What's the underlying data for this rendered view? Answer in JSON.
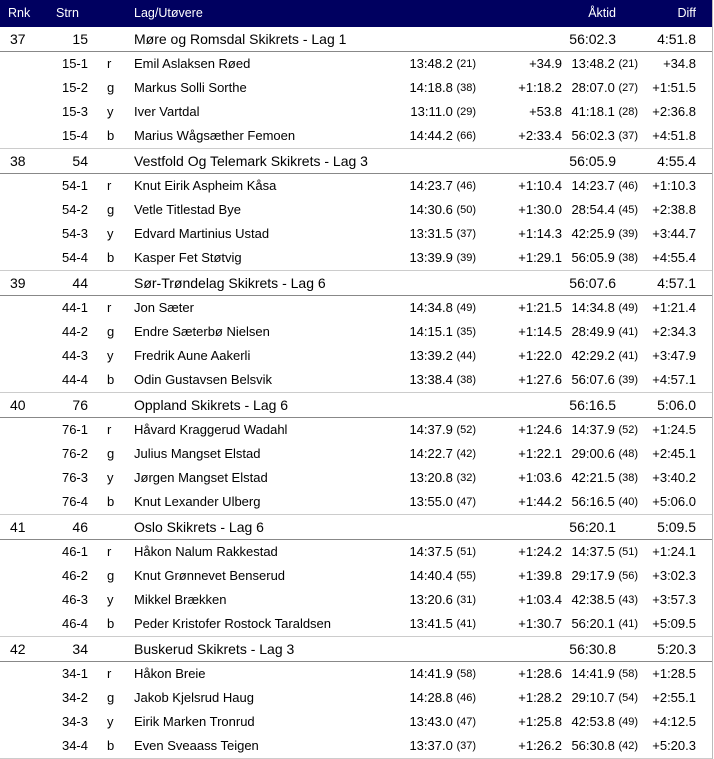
{
  "header": {
    "rank": "Rnk",
    "start": "Strn",
    "team": "Lag/Utøvere",
    "total": "Åktid",
    "diff": "Diff"
  },
  "teams": [
    {
      "rank": "37",
      "bib": "15",
      "name": "Møre og Romsdal Skikrets - Lag 1",
      "time": "56:02.3",
      "diff": "4:51.8",
      "runners": [
        {
          "bib": "15-1",
          "color": "r",
          "name": "Emil Aslaksen Røed",
          "leg": "13:48.2",
          "leg_rank": "(21)",
          "leg_diff": "+34.9",
          "cum": "13:48.2",
          "cum_rank": "(21)",
          "cum_diff": "+34.8"
        },
        {
          "bib": "15-2",
          "color": "g",
          "name": "Markus Solli Sorthe",
          "leg": "14:18.8",
          "leg_rank": "(38)",
          "leg_diff": "+1:18.2",
          "cum": "28:07.0",
          "cum_rank": "(27)",
          "cum_diff": "+1:51.5"
        },
        {
          "bib": "15-3",
          "color": "y",
          "name": "Iver Vartdal",
          "leg": "13:11.0",
          "leg_rank": "(29)",
          "leg_diff": "+53.8",
          "cum": "41:18.1",
          "cum_rank": "(28)",
          "cum_diff": "+2:36.8"
        },
        {
          "bib": "15-4",
          "color": "b",
          "name": "Marius Wågsæther Femoen",
          "leg": "14:44.2",
          "leg_rank": "(66)",
          "leg_diff": "+2:33.4",
          "cum": "56:02.3",
          "cum_rank": "(37)",
          "cum_diff": "+4:51.8"
        }
      ]
    },
    {
      "rank": "38",
      "bib": "54",
      "name": "Vestfold Og Telemark Skikrets - Lag 3",
      "time": "56:05.9",
      "diff": "4:55.4",
      "runners": [
        {
          "bib": "54-1",
          "color": "r",
          "name": "Knut Eirik Aspheim Kåsa",
          "leg": "14:23.7",
          "leg_rank": "(46)",
          "leg_diff": "+1:10.4",
          "cum": "14:23.7",
          "cum_rank": "(46)",
          "cum_diff": "+1:10.3"
        },
        {
          "bib": "54-2",
          "color": "g",
          "name": "Vetle Titlestad Bye",
          "leg": "14:30.6",
          "leg_rank": "(50)",
          "leg_diff": "+1:30.0",
          "cum": "28:54.4",
          "cum_rank": "(45)",
          "cum_diff": "+2:38.8"
        },
        {
          "bib": "54-3",
          "color": "y",
          "name": "Edvard Martinius Ustad",
          "leg": "13:31.5",
          "leg_rank": "(37)",
          "leg_diff": "+1:14.3",
          "cum": "42:25.9",
          "cum_rank": "(39)",
          "cum_diff": "+3:44.7"
        },
        {
          "bib": "54-4",
          "color": "b",
          "name": "Kasper Fet Støtvig",
          "leg": "13:39.9",
          "leg_rank": "(39)",
          "leg_diff": "+1:29.1",
          "cum": "56:05.9",
          "cum_rank": "(38)",
          "cum_diff": "+4:55.4"
        }
      ]
    },
    {
      "rank": "39",
      "bib": "44",
      "name": "Sør-Trøndelag Skikrets - Lag 6",
      "time": "56:07.6",
      "diff": "4:57.1",
      "runners": [
        {
          "bib": "44-1",
          "color": "r",
          "name": "Jon Sæter",
          "leg": "14:34.8",
          "leg_rank": "(49)",
          "leg_diff": "+1:21.5",
          "cum": "14:34.8",
          "cum_rank": "(49)",
          "cum_diff": "+1:21.4"
        },
        {
          "bib": "44-2",
          "color": "g",
          "name": "Endre Sæterbø Nielsen",
          "leg": "14:15.1",
          "leg_rank": "(35)",
          "leg_diff": "+1:14.5",
          "cum": "28:49.9",
          "cum_rank": "(41)",
          "cum_diff": "+2:34.3"
        },
        {
          "bib": "44-3",
          "color": "y",
          "name": "Fredrik Aune Aakerli",
          "leg": "13:39.2",
          "leg_rank": "(44)",
          "leg_diff": "+1:22.0",
          "cum": "42:29.2",
          "cum_rank": "(41)",
          "cum_diff": "+3:47.9"
        },
        {
          "bib": "44-4",
          "color": "b",
          "name": "Odin Gustavsen Belsvik",
          "leg": "13:38.4",
          "leg_rank": "(38)",
          "leg_diff": "+1:27.6",
          "cum": "56:07.6",
          "cum_rank": "(39)",
          "cum_diff": "+4:57.1"
        }
      ]
    },
    {
      "rank": "40",
      "bib": "76",
      "name": "Oppland Skikrets - Lag 6",
      "time": "56:16.5",
      "diff": "5:06.0",
      "runners": [
        {
          "bib": "76-1",
          "color": "r",
          "name": "Håvard Kraggerud Wadahl",
          "leg": "14:37.9",
          "leg_rank": "(52)",
          "leg_diff": "+1:24.6",
          "cum": "14:37.9",
          "cum_rank": "(52)",
          "cum_diff": "+1:24.5"
        },
        {
          "bib": "76-2",
          "color": "g",
          "name": "Julius Mangset Elstad",
          "leg": "14:22.7",
          "leg_rank": "(42)",
          "leg_diff": "+1:22.1",
          "cum": "29:00.6",
          "cum_rank": "(48)",
          "cum_diff": "+2:45.1"
        },
        {
          "bib": "76-3",
          "color": "y",
          "name": "Jørgen Mangset Elstad",
          "leg": "13:20.8",
          "leg_rank": "(32)",
          "leg_diff": "+1:03.6",
          "cum": "42:21.5",
          "cum_rank": "(38)",
          "cum_diff": "+3:40.2"
        },
        {
          "bib": "76-4",
          "color": "b",
          "name": "Knut Lexander Ulberg",
          "leg": "13:55.0",
          "leg_rank": "(47)",
          "leg_diff": "+1:44.2",
          "cum": "56:16.5",
          "cum_rank": "(40)",
          "cum_diff": "+5:06.0"
        }
      ]
    },
    {
      "rank": "41",
      "bib": "46",
      "name": "Oslo Skikrets - Lag 6",
      "time": "56:20.1",
      "diff": "5:09.5",
      "runners": [
        {
          "bib": "46-1",
          "color": "r",
          "name": "Håkon Nalum Rakkestad",
          "leg": "14:37.5",
          "leg_rank": "(51)",
          "leg_diff": "+1:24.2",
          "cum": "14:37.5",
          "cum_rank": "(51)",
          "cum_diff": "+1:24.1"
        },
        {
          "bib": "46-2",
          "color": "g",
          "name": "Knut Grønnevet Benserud",
          "leg": "14:40.4",
          "leg_rank": "(55)",
          "leg_diff": "+1:39.8",
          "cum": "29:17.9",
          "cum_rank": "(56)",
          "cum_diff": "+3:02.3"
        },
        {
          "bib": "46-3",
          "color": "y",
          "name": "Mikkel Brækken",
          "leg": "13:20.6",
          "leg_rank": "(31)",
          "leg_diff": "+1:03.4",
          "cum": "42:38.5",
          "cum_rank": "(43)",
          "cum_diff": "+3:57.3"
        },
        {
          "bib": "46-4",
          "color": "b",
          "name": "Peder Kristofer Rostock Taraldsen",
          "leg": "13:41.5",
          "leg_rank": "(41)",
          "leg_diff": "+1:30.7",
          "cum": "56:20.1",
          "cum_rank": "(41)",
          "cum_diff": "+5:09.5"
        }
      ]
    },
    {
      "rank": "42",
      "bib": "34",
      "name": "Buskerud Skikrets - Lag 3",
      "time": "56:30.8",
      "diff": "5:20.3",
      "runners": [
        {
          "bib": "34-1",
          "color": "r",
          "name": "Håkon Breie",
          "leg": "14:41.9",
          "leg_rank": "(58)",
          "leg_diff": "+1:28.6",
          "cum": "14:41.9",
          "cum_rank": "(58)",
          "cum_diff": "+1:28.5"
        },
        {
          "bib": "34-2",
          "color": "g",
          "name": "Jakob Kjelsrud Haug",
          "leg": "14:28.8",
          "leg_rank": "(46)",
          "leg_diff": "+1:28.2",
          "cum": "29:10.7",
          "cum_rank": "(54)",
          "cum_diff": "+2:55.1"
        },
        {
          "bib": "34-3",
          "color": "y",
          "name": "Eirik Marken Tronrud",
          "leg": "13:43.0",
          "leg_rank": "(47)",
          "leg_diff": "+1:25.8",
          "cum": "42:53.8",
          "cum_rank": "(49)",
          "cum_diff": "+4:12.5"
        },
        {
          "bib": "34-4",
          "color": "b",
          "name": "Even Sveaass Teigen",
          "leg": "13:37.0",
          "leg_rank": "(37)",
          "leg_diff": "+1:26.2",
          "cum": "56:30.8",
          "cum_rank": "(42)",
          "cum_diff": "+5:20.3"
        }
      ]
    }
  ],
  "colors": {
    "header_bg": "#000060",
    "header_text": "#ffffff"
  }
}
